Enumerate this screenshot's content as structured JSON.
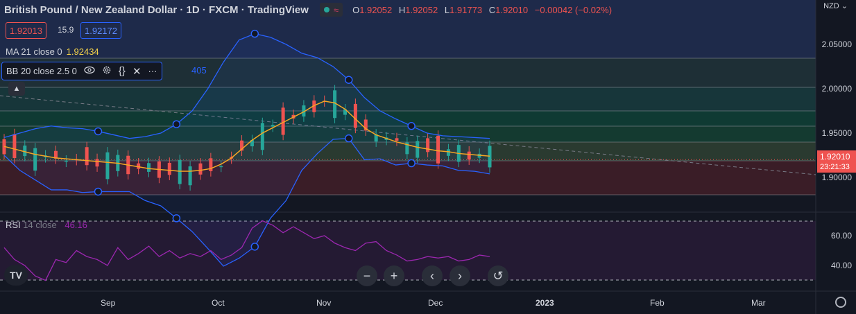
{
  "header": {
    "title": "British Pound / New Zealand Dollar · 1D · FXCM · TradingView",
    "ohlc": [
      {
        "k": "O",
        "v": "1.92052"
      },
      {
        "k": "H",
        "v": "1.92052"
      },
      {
        "k": "L",
        "v": "1.91773"
      },
      {
        "k": "C",
        "v": "1.92010"
      },
      {
        "k": "",
        "v": "−0.00042 (−0.02%)"
      }
    ]
  },
  "trade": {
    "sell": "1.92013",
    "spread": "15.9",
    "buy": "1.92172"
  },
  "indicators": {
    "ma_label": "MA 21 close 0",
    "ma_value": "1.92434",
    "bb_label": "BB 20 close 2.5 0",
    "bb_value_partial": "405",
    "rsi_label": "RSI",
    "rsi_sub": "14 close",
    "rsi_value": "46.16"
  },
  "axis": {
    "currency": "NZD",
    "price_ticks": [
      "2.05000",
      "2.00000",
      "1.95000",
      "1.90000"
    ],
    "rsi_ticks": [
      "60.00",
      "40.00"
    ],
    "current_price": "1.92010",
    "countdown": "23:21:33",
    "x_ticks": [
      "Sep",
      "Oct",
      "Nov",
      "Dec",
      "2023",
      "Feb",
      "Mar"
    ]
  },
  "colors": {
    "bg": "#131722",
    "up": "#26a69a",
    "down": "#ef5350",
    "ma": "#f5a623",
    "bb": "#2962ff",
    "rsi": "#9c27b0"
  },
  "icons": [
    "eye-icon",
    "gear-icon",
    "code-braces-icon",
    "close-icon",
    "more-icon",
    "chevron-up-icon",
    "zoom-out-icon",
    "zoom-in-icon",
    "chevron-left-icon",
    "chevron-right-icon",
    "reset-icon",
    "settings-icon"
  ],
  "chart_data": {
    "type": "line",
    "title": "British Pound / New Zealand Dollar · 1D · FXCM · TradingView",
    "ylim": [
      1.87,
      2.07
    ],
    "series": [
      {
        "name": "MA 21 close 0",
        "values": [
          1.935,
          1.932,
          1.929,
          1.926,
          1.924,
          1.922,
          1.921,
          1.92,
          1.919,
          1.918,
          1.917,
          1.916,
          1.914,
          1.912,
          1.91,
          1.909,
          1.908,
          1.907,
          1.907,
          1.908,
          1.91,
          1.915,
          1.922,
          1.932,
          1.942,
          1.95,
          1.956,
          1.962,
          1.968,
          1.974,
          1.981,
          1.986,
          1.984,
          1.977,
          1.966,
          1.955,
          1.948,
          1.944,
          1.94,
          1.937,
          1.934,
          1.932,
          1.93,
          1.929,
          1.927,
          1.926,
          1.925,
          1.924
        ]
      },
      {
        "name": "BB 20 close 2.5 0",
        "values": [
          1.945,
          1.95,
          1.955,
          1.958,
          1.956,
          1.955,
          1.952,
          1.948,
          1.944,
          1.946,
          1.95,
          1.96,
          1.975,
          2.0,
          2.03,
          2.055,
          2.062,
          2.058,
          2.05,
          2.04,
          2.035,
          2.025,
          2.01,
          1.99,
          1.975,
          1.966,
          1.958,
          1.95,
          1.947,
          1.946,
          1.945,
          1.944
        ]
      },
      {
        "name": "RSI",
        "values": [
          52,
          44,
          40,
          33,
          30,
          44,
          42,
          50,
          46,
          44,
          40,
          52,
          44,
          48,
          53,
          46,
          50,
          45,
          48,
          46,
          50,
          44,
          47,
          52,
          65,
          70,
          67,
          62,
          66,
          62,
          58,
          60,
          55,
          52,
          50,
          55,
          56,
          50,
          47,
          43,
          44,
          46,
          45,
          46,
          43,
          44,
          47,
          46
        ]
      }
    ]
  }
}
